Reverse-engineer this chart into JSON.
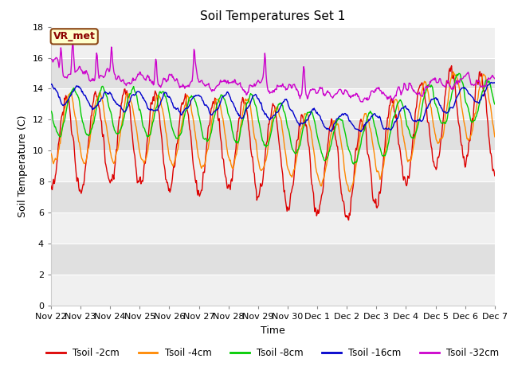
{
  "title": "Soil Temperatures Set 1",
  "xlabel": "Time",
  "ylabel": "Soil Temperature (C)",
  "ylim": [
    0,
    18
  ],
  "annotation": "VR_met",
  "x_tick_labels": [
    "Nov 22",
    "Nov 23",
    "Nov 24",
    "Nov 25",
    "Nov 26",
    "Nov 27",
    "Nov 28",
    "Nov 29",
    "Nov 30",
    "Dec 1",
    "Dec 2",
    "Dec 3",
    "Dec 4",
    "Dec 5",
    "Dec 6",
    "Dec 7"
  ],
  "colors": {
    "tsoil_2cm": "#dd0000",
    "tsoil_4cm": "#ff8800",
    "tsoil_8cm": "#00cc00",
    "tsoil_16cm": "#0000cc",
    "tsoil_32cm": "#cc00cc"
  },
  "legend_labels": [
    "Tsoil -2cm",
    "Tsoil -4cm",
    "Tsoil -8cm",
    "Tsoil -16cm",
    "Tsoil -32cm"
  ],
  "band_colors_even": "#f0f0f0",
  "band_colors_odd": "#e0e0e0",
  "background": "#ffffff",
  "title_fontsize": 11,
  "axis_fontsize": 9,
  "tick_fontsize": 8,
  "annotation_facecolor": "#ffffcc",
  "annotation_edgecolor": "#8b4513",
  "annotation_textcolor": "#8b0000"
}
